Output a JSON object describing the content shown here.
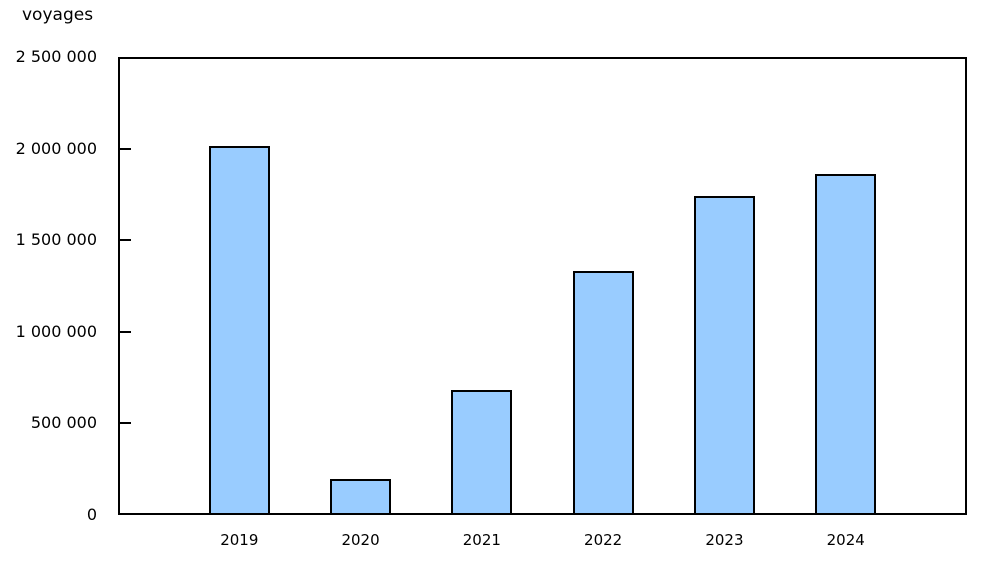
{
  "chart_data": {
    "type": "bar",
    "title": "voyages",
    "categories": [
      "2019",
      "2020",
      "2021",
      "2022",
      "2023",
      "2024"
    ],
    "values": [
      2015000,
      195000,
      685000,
      1330000,
      1740000,
      1860000
    ],
    "xlabel": "",
    "ylabel": "voyages",
    "ylim": [
      0,
      2500000
    ],
    "ytick_step": 500000,
    "ytick_labels": [
      "0",
      "500 000",
      "1 000 000",
      "1 500 000",
      "2 000 000",
      "2 500 000"
    ],
    "grid": false,
    "legend": "none",
    "bar_fill": "#99ccff",
    "bar_border": "#000000",
    "axis_color": "#000000",
    "background": "#ffffff"
  }
}
